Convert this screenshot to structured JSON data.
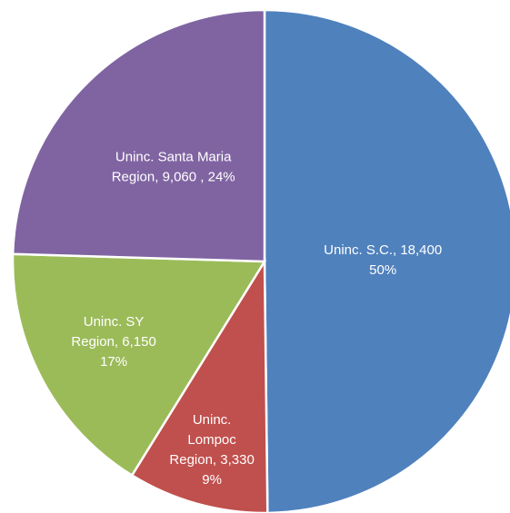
{
  "chart_data": {
    "type": "pie",
    "values": [
      18400,
      3330,
      6150,
      9060
    ],
    "data_labels": [
      [
        "Uninc. S.C.,  18,400",
        "50%"
      ],
      [
        "Uninc.",
        "Lompoc",
        "Region,  3,330",
        "9%"
      ],
      [
        "Uninc. SY",
        "Region,  6,150",
        "17%"
      ],
      [
        "Uninc. Santa Maria",
        "Region,  9,060 , 24%"
      ]
    ],
    "colors": [
      "#4f81bd",
      "#c0504d",
      "#9bbb59",
      "#8064a2"
    ]
  }
}
